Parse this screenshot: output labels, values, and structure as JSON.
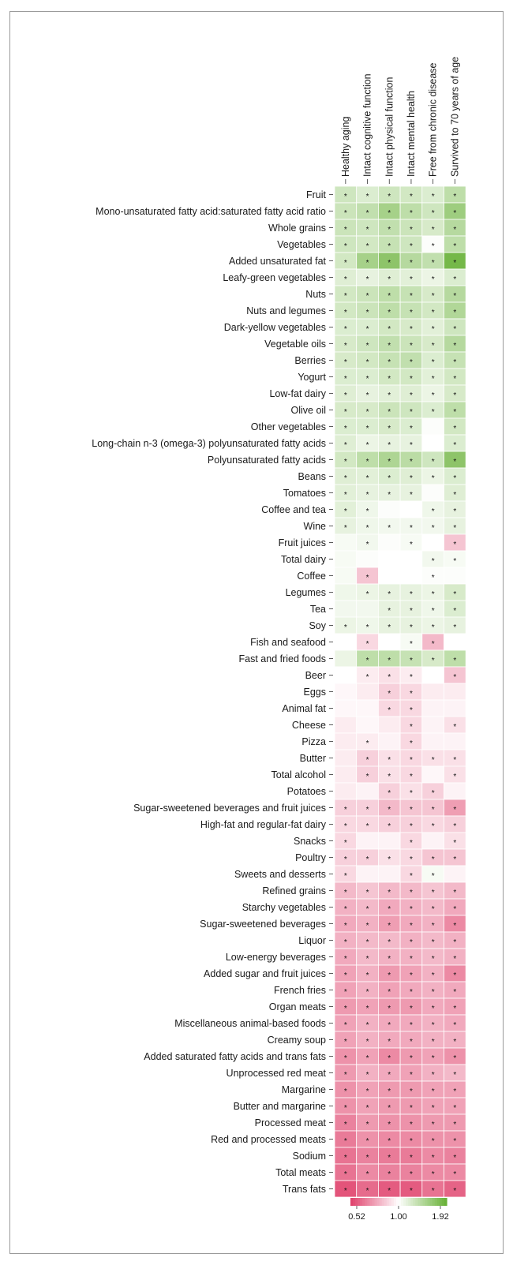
{
  "chart_data": {
    "type": "heatmap",
    "columns": [
      "Healthy aging",
      "Intact cognitive function",
      "Intact physical function",
      "Intact mental health",
      "Free from chronic disease",
      "Survived to 70 years of age"
    ],
    "rows": [
      "Fruit",
      "Mono-unsaturated fatty acid:saturated fatty acid ratio",
      "Whole grains",
      "Vegetables",
      "Added unsaturated fat",
      "Leafy-green vegetables",
      "Nuts",
      "Nuts and legumes",
      "Dark-yellow vegetables",
      "Vegetable oils",
      "Berries",
      "Yogurt",
      "Low-fat dairy",
      "Olive oil",
      "Other vegetables",
      "Long-chain n-3 (omega-3) polyunsaturated fatty acids",
      "Polyunsaturated fatty acids",
      "Beans",
      "Tomatoes",
      "Coffee and tea",
      "Wine",
      "Fruit juices",
      "Total dairy",
      "Coffee",
      "Legumes",
      "Tea",
      "Soy",
      "Fish and seafood",
      "Fast and fried foods",
      "Beer",
      "Eggs",
      "Animal fat",
      "Cheese",
      "Pizza",
      "Butter",
      "Total alcohol",
      "Potatoes",
      "Sugar-sweetened beverages and fruit juices",
      "High-fat and regular-fat dairy",
      "Snacks",
      "Poultry",
      "Sweets and desserts",
      "Refined grains",
      "Starchy vegetables",
      "Sugar-sweetened beverages",
      "Liquor",
      "Low-energy beverages",
      "Added sugar and fruit juices",
      "French fries",
      "Organ meats",
      "Miscellaneous animal-based foods",
      "Creamy soup",
      "Added saturated fatty acids and trans fats",
      "Unprocessed red meat",
      "Margarine",
      "Butter and margarine",
      "Processed meat",
      "Red and processed meats",
      "Sodium",
      "Total meats",
      "Trans fats"
    ],
    "values": [
      [
        1.3,
        1.22,
        1.3,
        1.28,
        1.22,
        1.4
      ],
      [
        1.32,
        1.38,
        1.55,
        1.4,
        1.3,
        1.6
      ],
      [
        1.32,
        1.3,
        1.38,
        1.32,
        1.25,
        1.45
      ],
      [
        1.3,
        1.28,
        1.35,
        1.3,
        1.02,
        1.4
      ],
      [
        1.28,
        1.55,
        1.7,
        1.45,
        1.38,
        1.85
      ],
      [
        1.2,
        1.15,
        1.2,
        1.18,
        1.12,
        1.22
      ],
      [
        1.28,
        1.32,
        1.4,
        1.35,
        1.25,
        1.45
      ],
      [
        1.28,
        1.32,
        1.4,
        1.35,
        1.28,
        1.48
      ],
      [
        1.22,
        1.22,
        1.28,
        1.25,
        1.18,
        1.3
      ],
      [
        1.25,
        1.3,
        1.38,
        1.32,
        1.25,
        1.45
      ],
      [
        1.25,
        1.28,
        1.35,
        1.38,
        1.22,
        1.35
      ],
      [
        1.22,
        1.22,
        1.28,
        1.28,
        1.18,
        1.28
      ],
      [
        1.2,
        1.15,
        1.18,
        1.2,
        1.12,
        1.25
      ],
      [
        1.25,
        1.25,
        1.32,
        1.3,
        1.22,
        1.4
      ],
      [
        1.22,
        1.22,
        1.25,
        1.22,
        1.02,
        1.28
      ],
      [
        1.2,
        1.12,
        1.15,
        1.15,
        1.0,
        1.22
      ],
      [
        1.28,
        1.4,
        1.5,
        1.42,
        1.3,
        1.7
      ],
      [
        1.2,
        1.18,
        1.22,
        1.2,
        1.12,
        1.22
      ],
      [
        1.18,
        1.15,
        1.15,
        1.15,
        1.02,
        1.2
      ],
      [
        1.18,
        1.1,
        1.02,
        1.0,
        1.1,
        1.15
      ],
      [
        1.15,
        1.1,
        1.08,
        1.08,
        1.08,
        1.15
      ],
      [
        1.05,
        1.08,
        1.02,
        1.05,
        1.0,
        0.85
      ],
      [
        1.05,
        1.02,
        1.0,
        1.0,
        1.08,
        1.05
      ],
      [
        1.05,
        0.85,
        1.0,
        1.0,
        1.02,
        1.02
      ],
      [
        1.1,
        1.12,
        1.15,
        1.15,
        1.12,
        1.25
      ],
      [
        1.08,
        1.08,
        1.15,
        1.15,
        1.1,
        1.22
      ],
      [
        1.12,
        1.1,
        1.15,
        1.15,
        1.12,
        1.15
      ],
      [
        1.0,
        0.9,
        1.0,
        1.05,
        0.82,
        1.0
      ],
      [
        1.12,
        1.4,
        1.4,
        1.35,
        1.25,
        1.4
      ],
      [
        1.0,
        0.95,
        0.92,
        0.95,
        1.0,
        0.85
      ],
      [
        0.98,
        0.95,
        0.88,
        0.9,
        0.95,
        0.95
      ],
      [
        0.98,
        0.98,
        0.9,
        0.9,
        0.97,
        0.97
      ],
      [
        0.95,
        0.98,
        0.95,
        0.9,
        0.97,
        0.92
      ],
      [
        0.95,
        0.95,
        0.97,
        0.9,
        0.97,
        0.97
      ],
      [
        0.95,
        0.88,
        0.92,
        0.9,
        0.92,
        0.92
      ],
      [
        0.95,
        0.88,
        0.92,
        0.9,
        0.98,
        0.92
      ],
      [
        0.95,
        0.97,
        0.88,
        0.92,
        0.88,
        0.97
      ],
      [
        0.88,
        0.88,
        0.82,
        0.85,
        0.85,
        0.75
      ],
      [
        0.9,
        0.9,
        0.88,
        0.88,
        0.9,
        0.88
      ],
      [
        0.9,
        0.97,
        0.97,
        0.9,
        0.97,
        0.92
      ],
      [
        0.88,
        0.88,
        0.92,
        0.9,
        0.85,
        0.85
      ],
      [
        0.9,
        0.97,
        0.97,
        0.9,
        1.05,
        0.97
      ],
      [
        0.82,
        0.85,
        0.82,
        0.82,
        0.85,
        0.82
      ],
      [
        0.8,
        0.82,
        0.78,
        0.8,
        0.82,
        0.78
      ],
      [
        0.78,
        0.8,
        0.75,
        0.78,
        0.8,
        0.7
      ],
      [
        0.8,
        0.82,
        0.82,
        0.8,
        0.82,
        0.8
      ],
      [
        0.78,
        0.82,
        0.8,
        0.8,
        0.82,
        0.8
      ],
      [
        0.76,
        0.8,
        0.74,
        0.76,
        0.8,
        0.7
      ],
      [
        0.76,
        0.8,
        0.76,
        0.78,
        0.8,
        0.78
      ],
      [
        0.74,
        0.76,
        0.74,
        0.74,
        0.78,
        0.76
      ],
      [
        0.76,
        0.8,
        0.78,
        0.78,
        0.8,
        0.78
      ],
      [
        0.76,
        0.8,
        0.78,
        0.78,
        0.8,
        0.8
      ],
      [
        0.72,
        0.76,
        0.7,
        0.74,
        0.76,
        0.72
      ],
      [
        0.74,
        0.8,
        0.78,
        0.76,
        0.8,
        0.82
      ],
      [
        0.72,
        0.76,
        0.74,
        0.74,
        0.76,
        0.76
      ],
      [
        0.72,
        0.76,
        0.74,
        0.74,
        0.76,
        0.76
      ],
      [
        0.68,
        0.74,
        0.72,
        0.72,
        0.74,
        0.74
      ],
      [
        0.66,
        0.72,
        0.7,
        0.7,
        0.72,
        0.72
      ],
      [
        0.64,
        0.68,
        0.66,
        0.66,
        0.7,
        0.68
      ],
      [
        0.64,
        0.7,
        0.68,
        0.68,
        0.7,
        0.7
      ],
      [
        0.56,
        0.62,
        0.58,
        0.58,
        0.64,
        0.6
      ]
    ],
    "stars": [
      [
        1,
        1,
        1,
        1,
        1,
        1
      ],
      [
        1,
        1,
        1,
        1,
        1,
        1
      ],
      [
        1,
        1,
        1,
        1,
        1,
        1
      ],
      [
        1,
        1,
        1,
        1,
        1,
        1
      ],
      [
        1,
        1,
        1,
        1,
        1,
        1
      ],
      [
        1,
        1,
        1,
        1,
        1,
        1
      ],
      [
        1,
        1,
        1,
        1,
        1,
        1
      ],
      [
        1,
        1,
        1,
        1,
        1,
        1
      ],
      [
        1,
        1,
        1,
        1,
        1,
        1
      ],
      [
        1,
        1,
        1,
        1,
        1,
        1
      ],
      [
        1,
        1,
        1,
        1,
        1,
        1
      ],
      [
        1,
        1,
        1,
        1,
        1,
        1
      ],
      [
        1,
        1,
        1,
        1,
        1,
        1
      ],
      [
        1,
        1,
        1,
        1,
        1,
        1
      ],
      [
        1,
        1,
        1,
        1,
        0,
        1
      ],
      [
        1,
        1,
        1,
        1,
        0,
        1
      ],
      [
        1,
        1,
        1,
        1,
        1,
        1
      ],
      [
        1,
        1,
        1,
        1,
        1,
        1
      ],
      [
        1,
        1,
        1,
        1,
        0,
        1
      ],
      [
        1,
        1,
        0,
        0,
        1,
        1
      ],
      [
        1,
        1,
        1,
        1,
        1,
        1
      ],
      [
        0,
        1,
        0,
        1,
        0,
        1
      ],
      [
        0,
        0,
        0,
        0,
        1,
        1
      ],
      [
        0,
        1,
        0,
        0,
        1,
        0
      ],
      [
        0,
        1,
        1,
        1,
        1,
        1
      ],
      [
        0,
        0,
        1,
        1,
        1,
        1
      ],
      [
        1,
        1,
        1,
        1,
        1,
        1
      ],
      [
        0,
        1,
        0,
        1,
        1,
        0
      ],
      [
        0,
        1,
        1,
        1,
        1,
        1
      ],
      [
        0,
        1,
        1,
        1,
        0,
        1
      ],
      [
        0,
        0,
        1,
        1,
        0,
        0
      ],
      [
        0,
        0,
        1,
        1,
        0,
        0
      ],
      [
        0,
        0,
        0,
        1,
        0,
        1
      ],
      [
        0,
        1,
        0,
        1,
        0,
        0
      ],
      [
        0,
        1,
        1,
        1,
        1,
        1
      ],
      [
        0,
        1,
        1,
        1,
        0,
        1
      ],
      [
        0,
        0,
        1,
        1,
        1,
        0
      ],
      [
        1,
        1,
        1,
        1,
        1,
        1
      ],
      [
        1,
        1,
        1,
        1,
        1,
        1
      ],
      [
        1,
        0,
        0,
        1,
        0,
        1
      ],
      [
        1,
        1,
        1,
        1,
        1,
        1
      ],
      [
        1,
        0,
        0,
        1,
        1,
        0
      ],
      [
        1,
        1,
        1,
        1,
        1,
        1
      ],
      [
        1,
        1,
        1,
        1,
        1,
        1
      ],
      [
        1,
        1,
        1,
        1,
        1,
        1
      ],
      [
        1,
        1,
        1,
        1,
        1,
        1
      ],
      [
        1,
        1,
        1,
        1,
        1,
        1
      ],
      [
        1,
        1,
        1,
        1,
        1,
        1
      ],
      [
        1,
        1,
        1,
        1,
        1,
        1
      ],
      [
        1,
        1,
        1,
        1,
        1,
        1
      ],
      [
        1,
        1,
        1,
        1,
        1,
        1
      ],
      [
        1,
        1,
        1,
        1,
        1,
        1
      ],
      [
        1,
        1,
        1,
        1,
        1,
        1
      ],
      [
        1,
        1,
        1,
        1,
        1,
        1
      ],
      [
        1,
        1,
        1,
        1,
        1,
        1
      ],
      [
        1,
        1,
        1,
        1,
        1,
        1
      ],
      [
        1,
        1,
        1,
        1,
        1,
        1
      ],
      [
        1,
        1,
        1,
        1,
        1,
        1
      ],
      [
        1,
        1,
        1,
        1,
        1,
        1
      ],
      [
        1,
        1,
        1,
        1,
        1,
        1
      ],
      [
        1,
        1,
        1,
        1,
        1,
        1
      ]
    ],
    "star_symbol": "*",
    "color_scale": {
      "min": 0.52,
      "mid": 1.0,
      "max": 1.92,
      "min_color": "#e0446e",
      "mid_color": "#ffffff",
      "max_color": "#6ab23a",
      "tick_labels": [
        "0.52",
        "1.00",
        "1.92"
      ]
    }
  }
}
